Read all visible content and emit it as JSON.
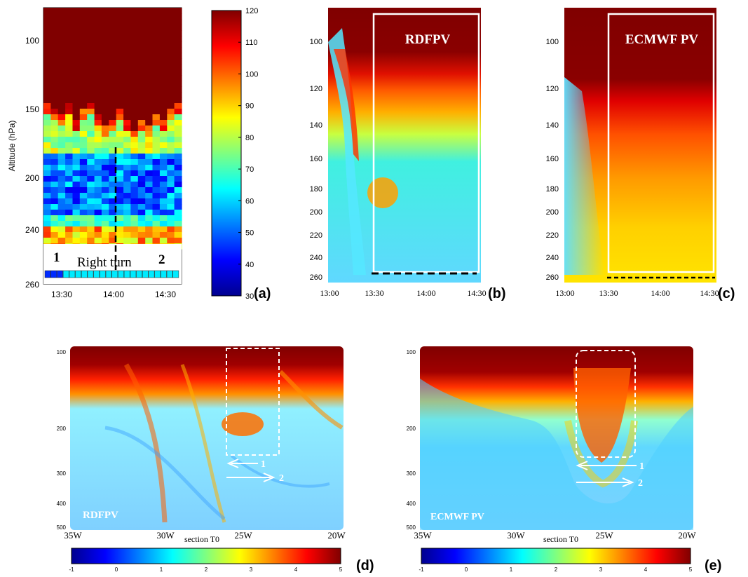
{
  "chart_data": [
    {
      "type": "heatmap",
      "panel_label": "(a)",
      "ylabel": "Altitude (hPa)",
      "x_ticks": [
        "13:30",
        "14:00",
        "14:30"
      ],
      "y_ticks": [
        "100",
        "150",
        "200",
        "240",
        "260"
      ],
      "annotation": "Right turn",
      "markers": [
        "1",
        "2"
      ],
      "colorbar": {
        "ticks": [
          "30",
          "40",
          "50",
          "60",
          "70",
          "80",
          "90",
          "100",
          "110",
          "120"
        ],
        "min": 30,
        "max": 120
      }
    },
    {
      "type": "heatmap",
      "panel_label": "(b)",
      "box_label": "RDFPV",
      "x_ticks": [
        "13:00",
        "13:30",
        "14:00",
        "14:30"
      ],
      "y_ticks": [
        "100",
        "120",
        "140",
        "160",
        "180",
        "200",
        "220",
        "240",
        "260"
      ]
    },
    {
      "type": "heatmap",
      "panel_label": "(c)",
      "box_label": "ECMWF PV",
      "x_ticks": [
        "13:00",
        "13:30",
        "14:00",
        "14:30"
      ],
      "y_ticks": [
        "100",
        "120",
        "140",
        "160",
        "180",
        "200",
        "220",
        "240",
        "260"
      ]
    },
    {
      "type": "heatmap",
      "panel_label": "(d)",
      "inset_label": "RDFPV",
      "xlabel": "section T0",
      "x_ticks": [
        "35W",
        "30W",
        "25W",
        "20W"
      ],
      "y_ticks": [
        "100",
        "200",
        "300",
        "400",
        "500"
      ],
      "markers": [
        "1",
        "2"
      ],
      "colorbar": {
        "ticks": [
          "-1",
          "0",
          "1",
          "2",
          "3",
          "4",
          "5"
        ],
        "min": -1,
        "max": 5
      }
    },
    {
      "type": "heatmap",
      "panel_label": "(e)",
      "inset_label": "ECMWF PV",
      "xlabel": "section T0",
      "x_ticks": [
        "35W",
        "30W",
        "25W",
        "20W"
      ],
      "y_ticks": [
        "100",
        "200",
        "300",
        "400",
        "500"
      ],
      "markers": [
        "1",
        "2"
      ],
      "colorbar": {
        "ticks": [
          "-1",
          "0",
          "1",
          "2",
          "3",
          "4",
          "5"
        ],
        "min": -1,
        "max": 5
      }
    }
  ]
}
